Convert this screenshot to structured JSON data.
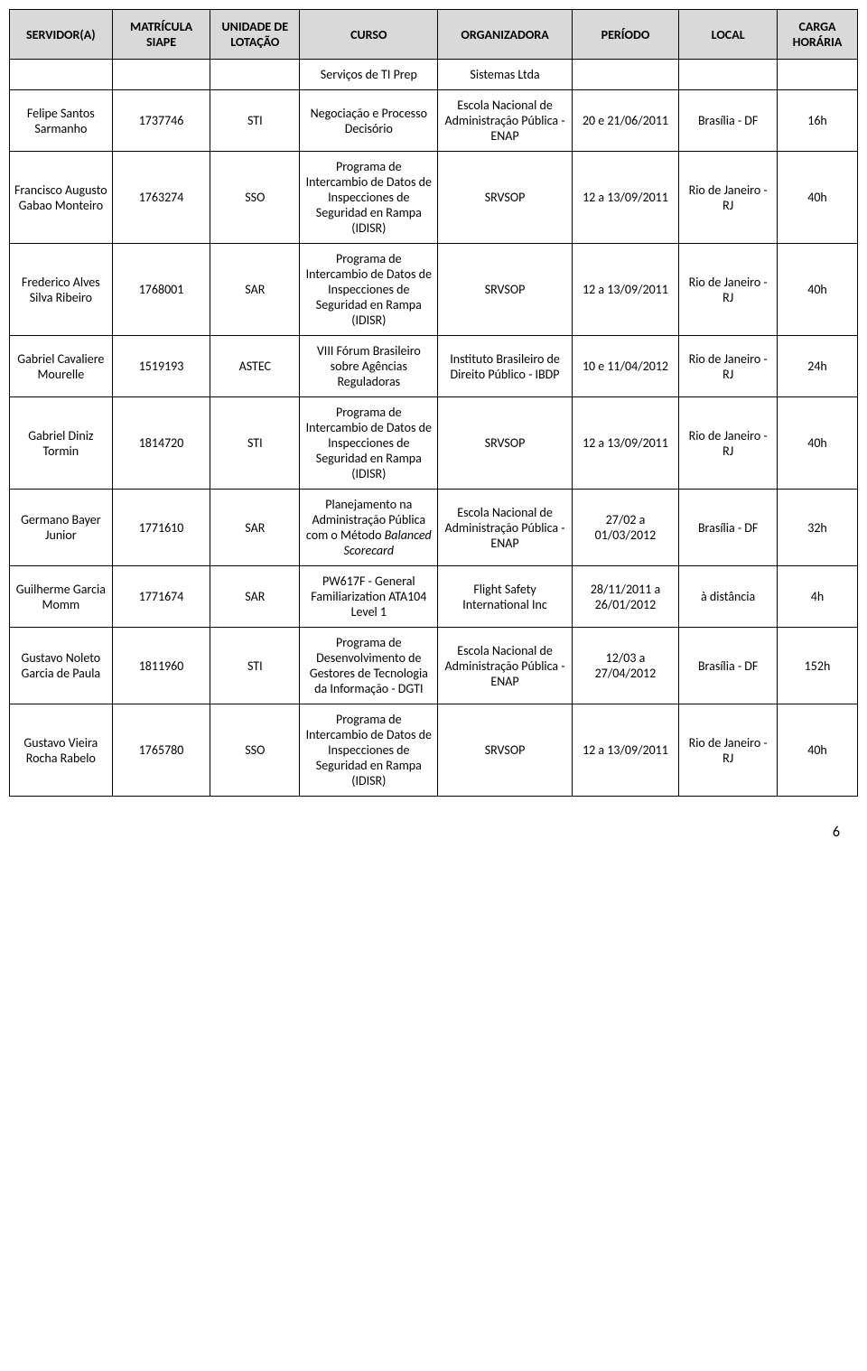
{
  "headers": {
    "servidor": "SERVIDOR(A)",
    "matricula": "MATRÍCULA SIAPE",
    "unidade": "UNIDADE DE LOTAÇÃO",
    "curso": "CURSO",
    "organizadora": "ORGANIZADORA",
    "periodo": "PERÍODO",
    "local": "LOCAL",
    "carga": "CARGA HORÁRIA"
  },
  "partial_row": {
    "curso": "Serviços de TI Prep",
    "organizadora": "Sistemas Ltda"
  },
  "rows": [
    {
      "servidor": "Felipe Santos Sarmanho",
      "matricula": "1737746",
      "unidade": "STI",
      "curso": "Negociação e Processo Decisório",
      "organizadora": "Escola Nacional de Administração Pública - ENAP",
      "periodo": "20 e 21/06/2011",
      "local": "Brasília - DF",
      "carga": "16h"
    },
    {
      "servidor": "Francisco Augusto Gabao Monteiro",
      "matricula": "1763274",
      "unidade": "SSO",
      "curso": "Programa de Intercambio de Datos de Inspecciones de Seguridad en Rampa (IDISR)",
      "organizadora": "SRVSOP",
      "periodo": "12 a 13/09/2011",
      "local": "Rio de Janeiro - RJ",
      "carga": "40h"
    },
    {
      "servidor": "Frederico Alves Silva Ribeiro",
      "matricula": "1768001",
      "unidade": "SAR",
      "curso": "Programa de Intercambio de Datos de Inspecciones de Seguridad en Rampa (IDISR)",
      "organizadora": "SRVSOP",
      "periodo": "12 a 13/09/2011",
      "local": "Rio de Janeiro - RJ",
      "carga": "40h"
    },
    {
      "servidor": "Gabriel Cavaliere Mourelle",
      "matricula": "1519193",
      "unidade": "ASTEC",
      "curso": "VIII Fórum Brasileiro sobre Agências Reguladoras",
      "organizadora": "Instituto Brasileiro de Direito Público - IBDP",
      "periodo": "10 e 11/04/2012",
      "local": "Rio de Janeiro - RJ",
      "carga": "24h"
    },
    {
      "servidor": "Gabriel Diniz Tormin",
      "matricula": "1814720",
      "unidade": "STI",
      "curso": "Programa de Intercambio de Datos de Inspecciones de Seguridad en Rampa (IDISR)",
      "organizadora": "SRVSOP",
      "periodo": "12 a 13/09/2011",
      "local": "Rio de Janeiro - RJ",
      "carga": "40h"
    },
    {
      "servidor": "Germano Bayer Junior",
      "matricula": "1771610",
      "unidade": "SAR",
      "curso_html": "Planejamento na Administração Pública com o Método <span class=\"italic\">Balanced Scorecard</span>",
      "organizadora": "Escola Nacional de Administração Pública - ENAP",
      "periodo": "27/02 a 01/03/2012",
      "local": "Brasília - DF",
      "carga": "32h"
    },
    {
      "servidor": "Guilherme Garcia Momm",
      "matricula": "1771674",
      "unidade": "SAR",
      "curso": "PW617F - General Familiarization ATA104 Level 1",
      "organizadora": "Flight Safety International Inc",
      "periodo": "28/11/2011 a 26/01/2012",
      "local": "à distância",
      "carga": "4h"
    },
    {
      "servidor": "Gustavo Noleto Garcia de Paula",
      "matricula": "1811960",
      "unidade": "STI",
      "curso": "Programa de Desenvolvimento de Gestores de Tecnologia da Informação - DGTI",
      "organizadora": "Escola Nacional de Administração Pública - ENAP",
      "periodo": "12/03 a 27/04/2012",
      "local": "Brasília - DF",
      "carga": "152h"
    },
    {
      "servidor": "Gustavo Vieira Rocha Rabelo",
      "matricula": "1765780",
      "unidade": "SSO",
      "curso": "Programa de Intercambio de Datos de Inspecciones de Seguridad en Rampa (IDISR)",
      "organizadora": "SRVSOP",
      "periodo": "12 a 13/09/2011",
      "local": "Rio de Janeiro - RJ",
      "carga": "40h"
    }
  ],
  "page_number": "6"
}
